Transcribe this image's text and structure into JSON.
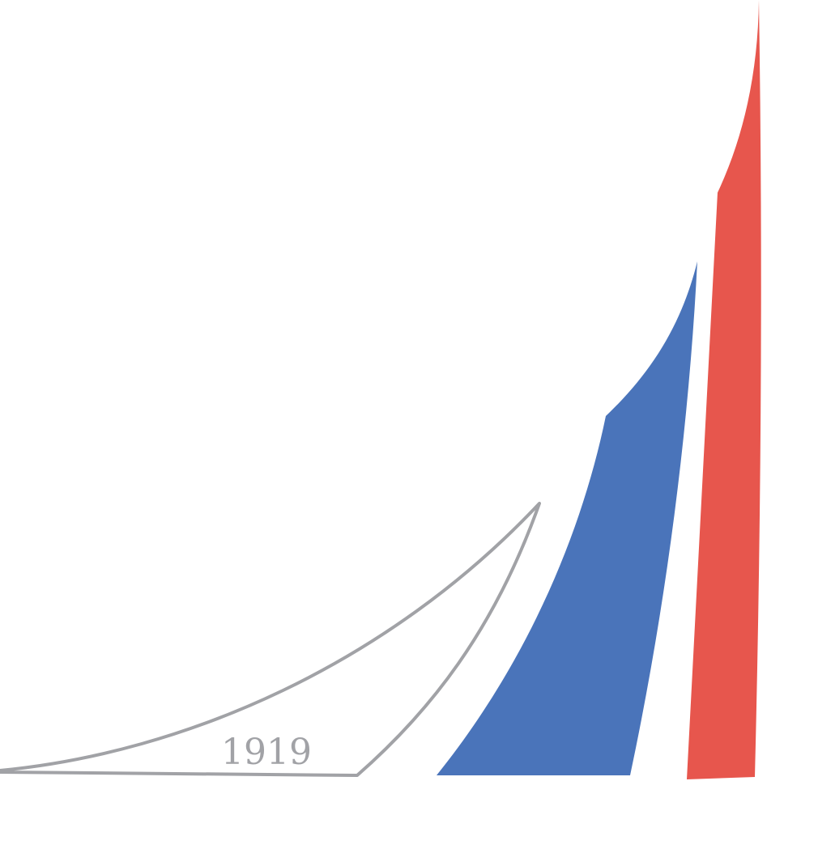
{
  "logo": {
    "year": "1919",
    "colors": {
      "outline": "#A1A2A6",
      "blue": "#4A74BA",
      "red": "#E7564D",
      "background": "#FFFFFF"
    }
  }
}
